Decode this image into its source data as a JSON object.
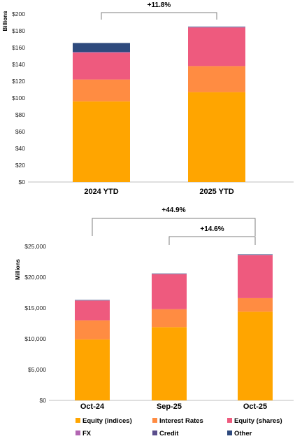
{
  "colors": {
    "Equity (indices)": "#FFA500",
    "Interest Rates": "#FF8C42",
    "Equity (shares)": "#EE5A7E",
    "FX": "#B266B2",
    "Credit": "#5A4E8C",
    "Other": "#2E4A7D"
  },
  "chart_data": [
    {
      "type": "bar",
      "stacked": true,
      "categories": [
        "2024 YTD",
        "2025 YTD"
      ],
      "ylabel": "Billions",
      "ylim": [
        0,
        200
      ],
      "ytick_labels": [
        "$0",
        "$20",
        "$40",
        "$60",
        "$80",
        "$100",
        "$120",
        "$140",
        "$160",
        "$180",
        "$200"
      ],
      "series": [
        {
          "name": "Equity (indices)",
          "values": [
            96,
            107
          ]
        },
        {
          "name": "Interest Rates",
          "values": [
            26,
            31
          ]
        },
        {
          "name": "Equity (shares)",
          "values": [
            32,
            46
          ]
        },
        {
          "name": "FX",
          "values": [
            0.5,
            0.3
          ]
        },
        {
          "name": "Credit",
          "values": [
            0.5,
            0.3
          ]
        },
        {
          "name": "Other",
          "values": [
            10.5,
            0.4
          ]
        }
      ],
      "annotations": [
        {
          "label": "+11.8%",
          "from": "2024 YTD",
          "to": "2025 YTD"
        }
      ]
    },
    {
      "type": "bar",
      "stacked": true,
      "categories": [
        "Oct-24",
        "Sep-25",
        "Oct-25"
      ],
      "ylabel": "Millions",
      "ylim": [
        0,
        25000
      ],
      "ytick_labels": [
        "$0",
        "$5,000",
        "$10,000",
        "$15,000",
        "$20,000",
        "$25,000"
      ],
      "series": [
        {
          "name": "Equity (indices)",
          "values": [
            9900,
            11900,
            14400
          ]
        },
        {
          "name": "Interest Rates",
          "values": [
            3100,
            2900,
            2200
          ]
        },
        {
          "name": "Equity (shares)",
          "values": [
            3200,
            5700,
            7000
          ]
        },
        {
          "name": "FX",
          "values": [
            20,
            20,
            20
          ]
        },
        {
          "name": "Credit",
          "values": [
            20,
            20,
            20
          ]
        },
        {
          "name": "Other",
          "values": [
            60,
            60,
            60
          ]
        }
      ],
      "annotations": [
        {
          "label": "+44.9%",
          "from": "Oct-24",
          "to": "Oct-25"
        },
        {
          "label": "+14.6%",
          "from": "Sep-25",
          "to": "Oct-25"
        }
      ]
    }
  ],
  "legend": {
    "items": [
      "Equity (indices)",
      "Interest Rates",
      "Equity (shares)",
      "FX",
      "Credit",
      "Other"
    ]
  }
}
